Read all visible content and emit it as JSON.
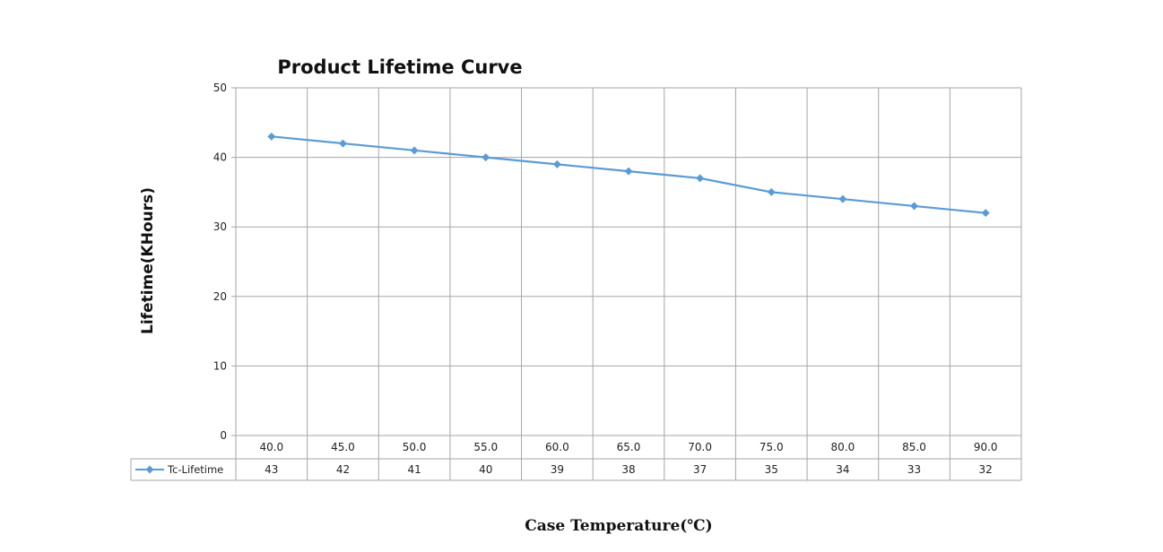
{
  "chart_data": {
    "type": "line",
    "title": "Product Lifetime Curve",
    "xlabel": "Case Temperature(℃)",
    "ylabel": "Lifetime(KHours)",
    "categories": [
      "40.0",
      "45.0",
      "50.0",
      "55.0",
      "60.0",
      "65.0",
      "70.0",
      "75.0",
      "80.0",
      "85.0",
      "90.0"
    ],
    "series": [
      {
        "name": "Tc-Lifetime",
        "values": [
          43,
          42,
          41,
          40,
          39,
          38,
          37,
          35,
          34,
          33,
          32
        ],
        "color": "#5b9bd5"
      }
    ],
    "ylim": [
      0,
      50
    ],
    "yticks": [
      0,
      10,
      20,
      30,
      40,
      50
    ],
    "grid": true,
    "data_table": true,
    "marker": "diamond",
    "grid_color": "#a6a6a6"
  }
}
